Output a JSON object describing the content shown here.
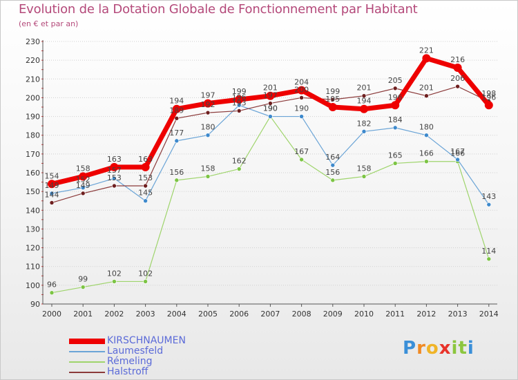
{
  "title": "Evolution de la Dotation Globale de Fonctionnement par Habitant",
  "subtitle": "(en € et par an)",
  "logo": {
    "text": "Proxiti",
    "letters": [
      "P",
      "r",
      "o",
      "x",
      "i",
      "t",
      "i"
    ],
    "colors": [
      "#3a8fd8",
      "#f08a24",
      "#f0b428",
      "#e8332a",
      "#8cc63f",
      "#8cc63f",
      "#3a8fd8"
    ]
  },
  "colors": {
    "title": "#b4497a",
    "legend_text": "#5b6ad8",
    "axis": "#555555",
    "grid": "#d0d0d0",
    "value_label": "#444444"
  },
  "chart_data": {
    "type": "line",
    "title": "Evolution de la Dotation Globale de Fonctionnement par Habitant",
    "ylabel": "(en € et par an)",
    "xlabel": "",
    "ylim": [
      90,
      230
    ],
    "yticks": [
      90,
      100,
      110,
      120,
      130,
      140,
      150,
      160,
      170,
      180,
      190,
      200,
      210,
      220,
      230
    ],
    "categories": [
      "2000",
      "2001",
      "2002",
      "2003",
      "2004",
      "2005",
      "2006",
      "2007",
      "2008",
      "2009",
      "2010",
      "2011",
      "2012",
      "2013",
      "2014"
    ],
    "grid": "horizontal dotted",
    "legend_position": "bottom-left",
    "series": [
      {
        "name": "Rémeling",
        "color": "#9ed46b",
        "dot": "#7cc444",
        "width": 1.2,
        "r": 3,
        "values": [
          96,
          99,
          102,
          102,
          156,
          158,
          162,
          190,
          167,
          156,
          158,
          165,
          166,
          166,
          114
        ]
      },
      {
        "name": "Laumesfeld",
        "color": "#6aa4d6",
        "dot": "#3d89cc",
        "width": 1.2,
        "r": 3,
        "values": [
          149,
          152,
          157,
          145,
          177,
          180,
          196,
          190,
          190,
          164,
          182,
          184,
          180,
          167,
          143
        ]
      },
      {
        "name": "Halstroff",
        "color": "#8b3a3a",
        "dot": "#6e1f1f",
        "width": 1.2,
        "r": 3,
        "values": [
          144,
          149,
          153,
          153,
          189,
          192,
          193,
          197,
          200,
          199,
          201,
          205,
          201,
          206,
          198
        ]
      },
      {
        "name": "KIRSCHNAUMEN",
        "color": "#ee0000",
        "dot": "#ee0000",
        "width": 7,
        "r": 6,
        "values": [
          154,
          158,
          163,
          163,
          194,
          197,
          199,
          201,
          204,
          195,
          194,
          196,
          221,
          216,
          196
        ]
      }
    ],
    "data_labels": [
      {
        "series": "KIRSCHNAUMEN",
        "values": [
          "154",
          "158",
          "163",
          "163",
          "194",
          "197",
          "199",
          "201",
          "204",
          "195",
          "194",
          "196",
          "221",
          "216",
          "196"
        ]
      },
      {
        "series": "Laumesfeld",
        "values": [
          "149",
          "152",
          "157",
          "145",
          "177",
          "180",
          "196",
          "190",
          "190",
          "164",
          "182",
          "184",
          "180",
          "167",
          "143"
        ]
      },
      {
        "series": "Rémeling",
        "values": [
          "96",
          "99",
          "102",
          "102",
          "156",
          "158",
          "162",
          "190",
          "167",
          "156",
          "158",
          "165",
          "166",
          "166",
          "114"
        ]
      },
      {
        "series": "Halstroff",
        "values": [
          "144",
          "149",
          "153",
          "153",
          "189",
          "192",
          "193",
          "197",
          "200",
          "199",
          "201",
          "205",
          "201",
          "206",
          "198"
        ]
      }
    ],
    "legend": [
      "KIRSCHNAUMEN",
      "Laumesfeld",
      "Rémeling",
      "Halstroff"
    ]
  }
}
